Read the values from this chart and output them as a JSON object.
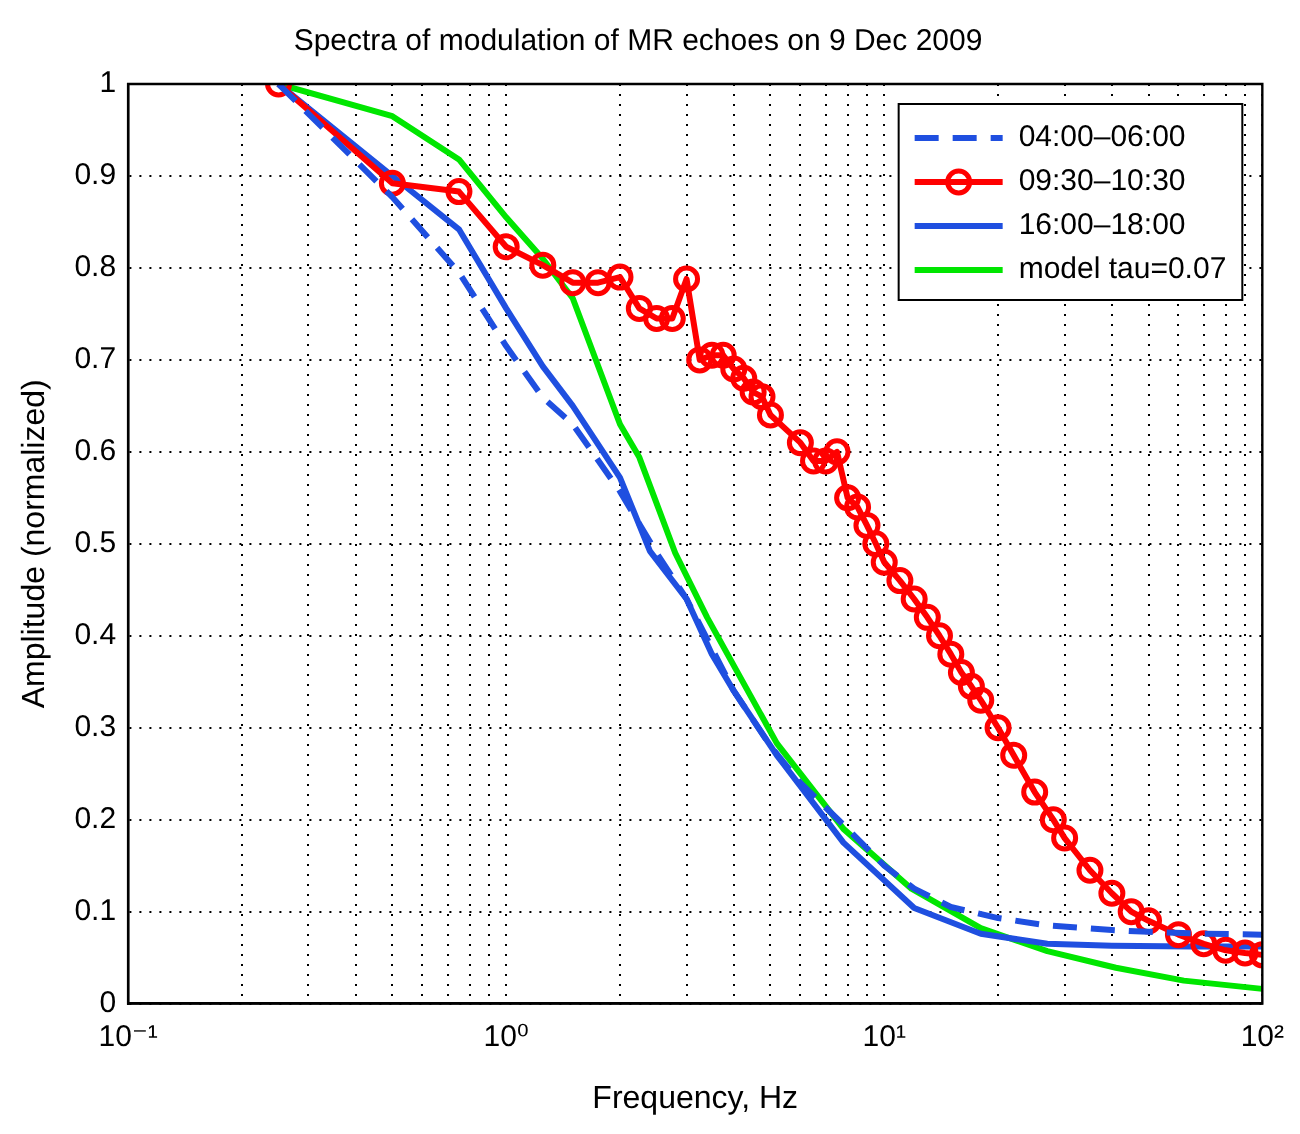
{
  "chart_data": {
    "type": "line",
    "title": "Spectra of modulation of MR echoes on 9 Dec 2009",
    "xlabel": "Frequency, Hz",
    "ylabel": "Amplitude (normalized)",
    "log": "x",
    "grid": true,
    "legend": "top right",
    "xlim": [
      0.1,
      100
    ],
    "ylim": [
      0,
      1
    ],
    "xticks": [
      {
        "value": 0.1,
        "label": "10⁻¹"
      },
      {
        "value": 0.2,
        "label": null
      },
      {
        "value": 0.3,
        "label": null
      },
      {
        "value": 0.4,
        "label": null
      },
      {
        "value": 0.5,
        "label": null
      },
      {
        "value": 0.6,
        "label": null
      },
      {
        "value": 0.7,
        "label": null
      },
      {
        "value": 0.8,
        "label": null
      },
      {
        "value": 0.9,
        "label": null
      },
      {
        "value": 1,
        "label": "10⁰"
      },
      {
        "value": 2,
        "label": null
      },
      {
        "value": 3,
        "label": null
      },
      {
        "value": 4,
        "label": null
      },
      {
        "value": 5,
        "label": null
      },
      {
        "value": 6,
        "label": null
      },
      {
        "value": 7,
        "label": null
      },
      {
        "value": 8,
        "label": null
      },
      {
        "value": 9,
        "label": null
      },
      {
        "value": 10,
        "label": "10¹"
      },
      {
        "value": 20,
        "label": null
      },
      {
        "value": 30,
        "label": null
      },
      {
        "value": 40,
        "label": null
      },
      {
        "value": 50,
        "label": null
      },
      {
        "value": 60,
        "label": null
      },
      {
        "value": 70,
        "label": null
      },
      {
        "value": 80,
        "label": null
      },
      {
        "value": 90,
        "label": null
      },
      {
        "value": 100,
        "label": "10²"
      }
    ],
    "yticks": [
      0,
      0.1,
      0.2,
      0.3,
      0.4,
      0.5,
      0.6,
      0.7,
      0.8,
      0.9,
      1
    ],
    "series": [
      {
        "name": "04:00–06:00",
        "color": "#1f4fe0",
        "line_style": "dashed",
        "marker": "none",
        "x": [
          0.25,
          0.5,
          0.75,
          1,
          1.25,
          1.5,
          2,
          2.5,
          3,
          4,
          5,
          6,
          8,
          10,
          12,
          15,
          20,
          27,
          40,
          50,
          70,
          100
        ],
        "values": [
          1,
          0.877,
          0.795,
          0.715,
          0.659,
          0.63,
          0.557,
          0.49,
          0.44,
          0.34,
          0.28,
          0.24,
          0.19,
          0.15,
          0.125,
          0.105,
          0.093,
          0.085,
          0.08,
          0.078,
          0.076,
          0.075
        ]
      },
      {
        "name": "09:30–10:30",
        "color": "#ff0000",
        "line_style": "solid",
        "marker": "circle",
        "x": [
          0.25,
          0.5,
          0.75,
          1,
          1.25,
          1.5,
          1.75,
          2,
          2.25,
          2.5,
          2.75,
          3,
          3.25,
          3.5,
          3.75,
          4,
          4.25,
          4.5,
          4.75,
          5,
          6,
          6.5,
          7,
          7.5,
          8,
          8.5,
          9,
          9.5,
          10,
          11,
          12,
          13,
          14,
          15,
          16,
          17,
          18,
          20,
          22,
          25,
          28,
          30,
          35,
          40,
          45,
          50,
          60,
          70,
          80,
          90,
          100
        ],
        "values": [
          1,
          0.892,
          0.883,
          0.823,
          0.803,
          0.784,
          0.784,
          0.79,
          0.756,
          0.745,
          0.745,
          0.788,
          0.7,
          0.705,
          0.705,
          0.69,
          0.68,
          0.665,
          0.66,
          0.64,
          0.61,
          0.59,
          0.59,
          0.6,
          0.55,
          0.54,
          0.52,
          0.5,
          0.48,
          0.46,
          0.44,
          0.42,
          0.4,
          0.38,
          0.36,
          0.345,
          0.33,
          0.3,
          0.27,
          0.23,
          0.2,
          0.18,
          0.145,
          0.12,
          0.1,
          0.09,
          0.075,
          0.065,
          0.058,
          0.055,
          0.053
        ]
      },
      {
        "name": "16:00–18:00",
        "color": "#1f4fe0",
        "line_style": "solid",
        "marker": "none",
        "x": [
          0.25,
          0.5,
          0.75,
          1,
          1.25,
          1.5,
          2,
          2.4,
          3,
          3.5,
          4,
          5.2,
          7.8,
          12,
          18,
          27,
          40,
          65,
          100
        ],
        "values": [
          1,
          0.9,
          0.842,
          0.756,
          0.693,
          0.65,
          0.572,
          0.492,
          0.44,
          0.38,
          0.34,
          0.27,
          0.175,
          0.104,
          0.076,
          0.065,
          0.063,
          0.062,
          0.062
        ]
      },
      {
        "name": "model tau=0.07",
        "color": "#00e600",
        "line_style": "solid",
        "marker": "none",
        "x": [
          0.25,
          0.5,
          0.75,
          1,
          1.25,
          1.5,
          2,
          2.25,
          2.8,
          3.4,
          5.2,
          7.8,
          11.8,
          18,
          27,
          41,
          62,
          100
        ],
        "values": [
          1,
          0.965,
          0.918,
          0.855,
          0.81,
          0.767,
          0.63,
          0.594,
          0.49,
          0.42,
          0.283,
          0.19,
          0.125,
          0.082,
          0.057,
          0.039,
          0.025,
          0.016
        ]
      }
    ]
  }
}
